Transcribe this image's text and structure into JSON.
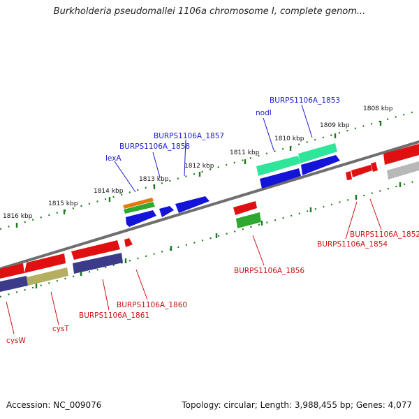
{
  "title": "Burkholderia pseudomallei 1106a chromosome I, complete genom...",
  "footer": {
    "accession": "Accession: NC_009076",
    "summary": "Topology: circular; Length: 3,988,455 bp; Genes: 4,077"
  },
  "ticks": [
    "1816 kbp",
    "1815 kbp",
    "1814 kbp",
    "1813 kbp",
    "1812 kbp",
    "1811 kbp",
    "1810 kbp",
    "1809 kbp",
    "1808 kbp"
  ],
  "genes_forward_strand_labels": [
    "lexA",
    "BURPS1106A_1858",
    "BURPS1106A_1857",
    "nodI",
    "BURPS1106A_1853"
  ],
  "genes_reverse_strand_labels": [
    "cysW",
    "cysT",
    "BURPS1106A_1861",
    "BURPS1106A_1860",
    "BURPS1106A_1856",
    "BURPS1106A_1854",
    "BURPS1106A_1852"
  ],
  "colors": {
    "backbone": "#777777",
    "tick": "#1f7a1f",
    "forward_label": "#1a1acc",
    "reverse_label": "#cc1111",
    "gene_red": "#e01010",
    "gene_blue": "#1414d8",
    "gene_navy": "#3b3b8a",
    "gene_olive": "#b5b061",
    "gene_teal": "#2ee59a",
    "gene_green": "#2ea82e",
    "gene_orange": "#e07a10",
    "gene_gray": "#b8b8b8"
  }
}
